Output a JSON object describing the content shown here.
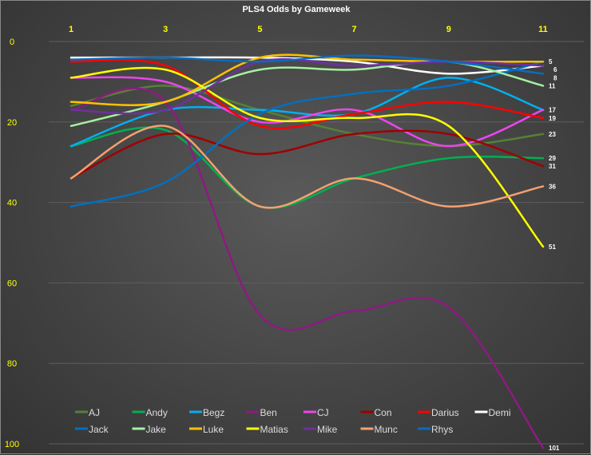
{
  "chart_data": {
    "type": "line",
    "title": "PLS4 Odds by Gameweek",
    "xlabel": "",
    "ylabel": "",
    "x": [
      1,
      3,
      5,
      7,
      9,
      11
    ],
    "x_ticks": [
      "1",
      "3",
      "5",
      "7",
      "9",
      "11"
    ],
    "y_ticks": [
      "0",
      "20",
      "40",
      "60",
      "80",
      "100"
    ],
    "ylim": [
      0,
      100
    ],
    "y_reversed": true,
    "smoothed": true,
    "grid": true,
    "legend_position": "bottom",
    "series": [
      {
        "name": "AJ",
        "color": "#548235",
        "values": [
          16,
          11,
          17,
          23,
          26,
          23
        ]
      },
      {
        "name": "Andy",
        "color": "#00b050",
        "values": [
          26,
          22,
          41,
          34,
          29,
          29
        ]
      },
      {
        "name": "Begz",
        "color": "#00b0f0",
        "values": [
          26,
          17,
          17,
          18,
          9,
          17
        ]
      },
      {
        "name": "Ben",
        "color": "#8e1a82",
        "values": [
          17,
          15,
          68,
          67,
          66,
          101
        ]
      },
      {
        "name": "CJ",
        "color": "#ee44ee",
        "values": [
          9,
          10,
          20,
          17,
          26,
          17
        ]
      },
      {
        "name": "Con",
        "color": "#a00000",
        "values": [
          34,
          23,
          28,
          23,
          23,
          31
        ]
      },
      {
        "name": "Darius",
        "color": "#ff0000",
        "values": [
          5,
          6,
          21,
          18,
          15,
          19
        ]
      },
      {
        "name": "Demi",
        "color": "#ffffff",
        "values": [
          4,
          4,
          4,
          5,
          8,
          6
        ]
      },
      {
        "name": "Jack",
        "color": "#0070c0",
        "values": [
          41,
          35,
          18,
          13,
          11,
          5
        ]
      },
      {
        "name": "Jake",
        "color": "#a6f0a0",
        "values": [
          21,
          15,
          7,
          7,
          5,
          11
        ]
      },
      {
        "name": "Luke",
        "color": "#ffc000",
        "values": [
          15,
          15,
          4,
          4.5,
          5,
          5
        ]
      },
      {
        "name": "Matias",
        "color": "#ffff00",
        "values": [
          9,
          7,
          19,
          19,
          21,
          51
        ]
      },
      {
        "name": "Mike",
        "color": "#7030a0",
        "values": [
          17,
          17,
          5,
          6,
          5,
          6
        ]
      },
      {
        "name": "Munc",
        "color": "#f4a070",
        "values": [
          34,
          21,
          41,
          34,
          41,
          36
        ]
      },
      {
        "name": "Rhys",
        "color": "#0a6cc0",
        "values": [
          4.5,
          4,
          5,
          3.5,
          5,
          8
        ]
      }
    ],
    "end_labels": [
      "5",
      "6",
      "8",
      "11",
      "17",
      "19",
      "23",
      "29",
      "31",
      "36",
      "51",
      "101"
    ]
  }
}
